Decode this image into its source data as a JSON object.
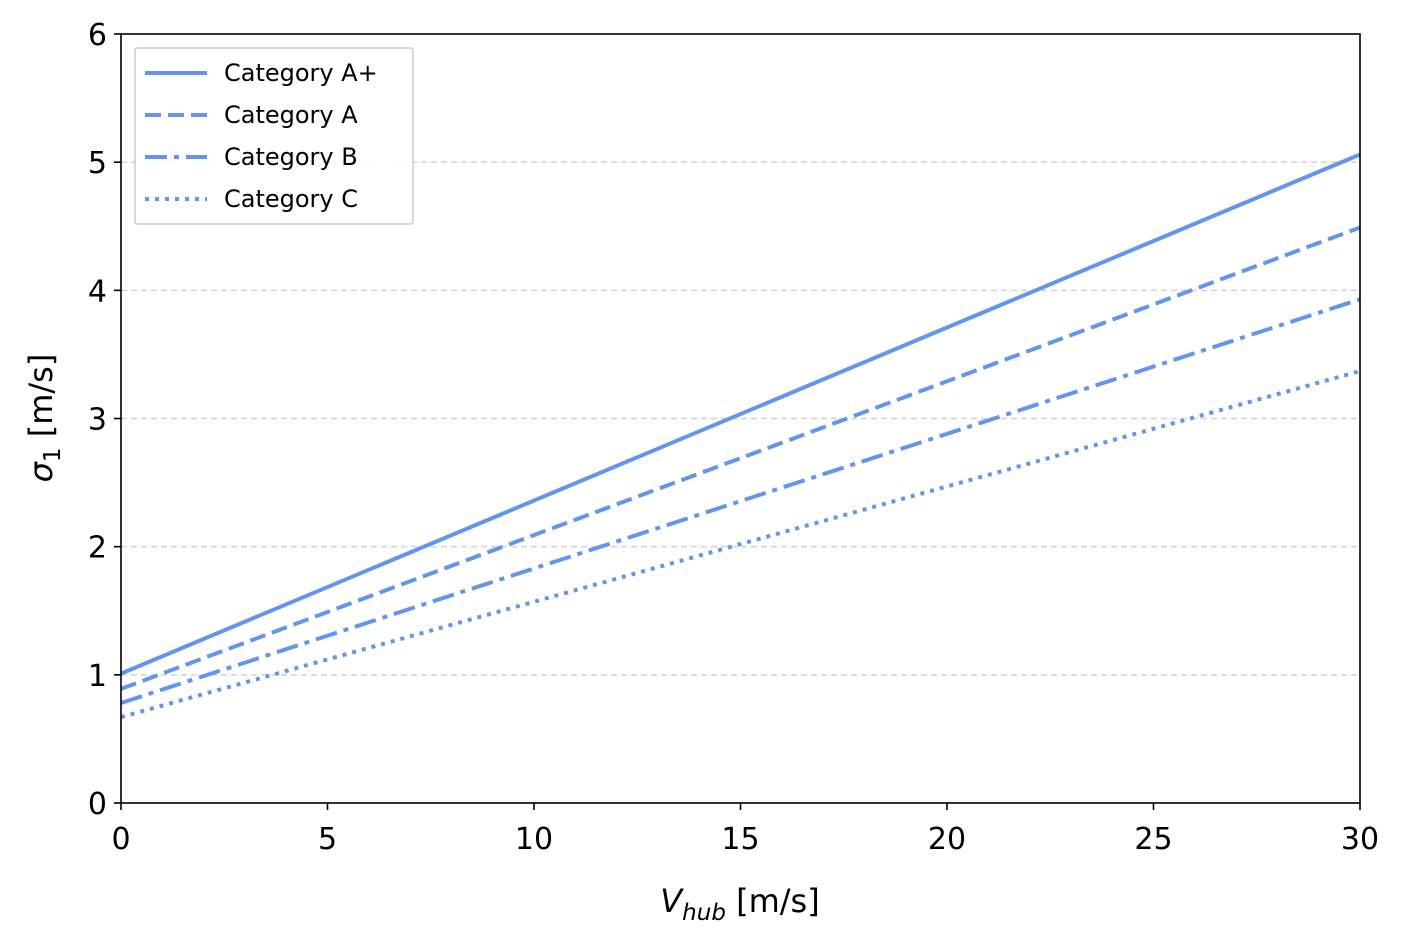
{
  "chart_data": {
    "type": "line",
    "title": "",
    "xlabel": {
      "main": "V",
      "sub": "hub",
      "unit": " [m/s]"
    },
    "ylabel": {
      "main": "σ",
      "sub": "1",
      "unit": " [m/s]"
    },
    "xlim": [
      0,
      30
    ],
    "ylim": [
      0,
      6
    ],
    "xticks": [
      0,
      5,
      10,
      15,
      20,
      25,
      30
    ],
    "yticks": [
      0,
      1,
      2,
      3,
      4,
      5,
      6
    ],
    "grid": {
      "y": true,
      "x": false,
      "style": "dashed"
    },
    "legend_position": "top-left",
    "color": "#6495ed",
    "series": [
      {
        "name": "Category A+",
        "style": "solid",
        "x": [
          0,
          30
        ],
        "values": [
          1.01,
          5.06
        ]
      },
      {
        "name": "Category A",
        "style": "dashed",
        "x": [
          0,
          30
        ],
        "values": [
          0.89,
          4.49
        ]
      },
      {
        "name": "Category B",
        "style": "dashdot",
        "x": [
          0,
          30
        ],
        "values": [
          0.78,
          3.93
        ]
      },
      {
        "name": "Category C",
        "style": "dotted",
        "x": [
          0,
          30
        ],
        "values": [
          0.67,
          3.37
        ]
      }
    ]
  }
}
